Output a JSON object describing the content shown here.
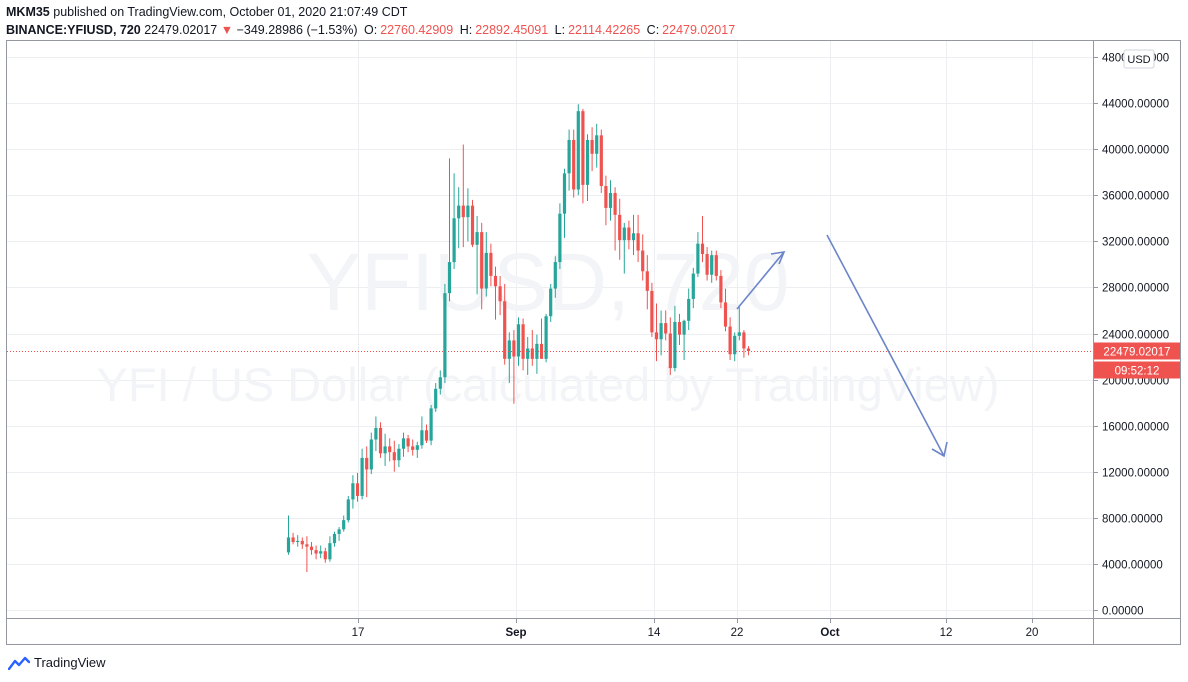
{
  "header": {
    "publisher": "MKM35",
    "published_text": "published on TradingView.com, October 01, 2020 21:07:49 CDT",
    "symbol": "BINANCE:YFIUSD, 720",
    "last": "22479.02017",
    "change": "−349.28986 (−1.53%)",
    "o_label": "O:",
    "o_value": "22760.42909",
    "h_label": "H:",
    "h_value": "22892.45091",
    "l_label": "L:",
    "l_value": "22114.42265",
    "c_label": "C:",
    "c_value": "22479.02017"
  },
  "watermark": {
    "symbol": "YFIUSD, 720",
    "description": "YFI / US Dollar (calculated by TradingView)"
  },
  "price_axis": {
    "currency_button": "USD",
    "ticks": [
      "0.00000",
      "4000.00000",
      "8000.00000",
      "12000.00000",
      "16000.00000",
      "20000.00000",
      "24000.00000",
      "28000.00000",
      "32000.00000",
      "36000.00000",
      "40000.00000",
      "44000.00000",
      "48000.00000"
    ],
    "last_price_label": "22479.02017",
    "countdown_label": "09:52:12"
  },
  "time_axis": {
    "labels": [
      "17",
      "Sep",
      "14",
      "22",
      "Oct",
      "12",
      "20"
    ]
  },
  "footer": {
    "brand": "TradingView"
  },
  "colors": {
    "up": "#26a69a",
    "down": "#ef5350",
    "arrow": "#6b85c9",
    "grid": "#eceef2"
  },
  "chart_data": {
    "type": "candlestick",
    "symbol": "BINANCE:YFIUSD",
    "interval": "720",
    "ylim": [
      0,
      48000
    ],
    "y_ticks": [
      0,
      4000,
      8000,
      12000,
      16000,
      20000,
      24000,
      28000,
      32000,
      36000,
      40000,
      44000,
      48000
    ],
    "x_tick_labels": [
      "17",
      "Sep",
      "14",
      "22",
      "Oct",
      "12",
      "20"
    ],
    "last_price": 22479.02017,
    "grid": true,
    "candles": [
      {
        "o": 5000,
        "h": 8200,
        "l": 4800,
        "c": 6300
      },
      {
        "o": 6300,
        "h": 6700,
        "l": 5700,
        "c": 5900
      },
      {
        "o": 5900,
        "h": 6500,
        "l": 5500,
        "c": 6000
      },
      {
        "o": 6000,
        "h": 6300,
        "l": 5300,
        "c": 5700
      },
      {
        "o": 5700,
        "h": 6400,
        "l": 3300,
        "c": 5500
      },
      {
        "o": 5500,
        "h": 5900,
        "l": 4800,
        "c": 5200
      },
      {
        "o": 5200,
        "h": 5600,
        "l": 4400,
        "c": 4900
      },
      {
        "o": 4900,
        "h": 5600,
        "l": 4500,
        "c": 5100
      },
      {
        "o": 5100,
        "h": 5400,
        "l": 4100,
        "c": 4400
      },
      {
        "o": 4400,
        "h": 6400,
        "l": 4200,
        "c": 5800
      },
      {
        "o": 5800,
        "h": 6800,
        "l": 5500,
        "c": 6600
      },
      {
        "o": 6600,
        "h": 7200,
        "l": 6000,
        "c": 7000
      },
      {
        "o": 7000,
        "h": 8200,
        "l": 6800,
        "c": 7800
      },
      {
        "o": 7800,
        "h": 9900,
        "l": 7600,
        "c": 9600
      },
      {
        "o": 9600,
        "h": 11700,
        "l": 8800,
        "c": 11000
      },
      {
        "o": 11000,
        "h": 11900,
        "l": 9400,
        "c": 9900
      },
      {
        "o": 9900,
        "h": 14000,
        "l": 9600,
        "c": 13200
      },
      {
        "o": 13200,
        "h": 14200,
        "l": 9800,
        "c": 12200
      },
      {
        "o": 12200,
        "h": 15400,
        "l": 11800,
        "c": 14800
      },
      {
        "o": 14800,
        "h": 16800,
        "l": 13800,
        "c": 15800
      },
      {
        "o": 15800,
        "h": 16300,
        "l": 13200,
        "c": 13600
      },
      {
        "o": 13600,
        "h": 15300,
        "l": 12500,
        "c": 14200
      },
      {
        "o": 14200,
        "h": 14900,
        "l": 12900,
        "c": 13700
      },
      {
        "o": 13700,
        "h": 14700,
        "l": 12000,
        "c": 13000
      },
      {
        "o": 13000,
        "h": 14400,
        "l": 12400,
        "c": 14000
      },
      {
        "o": 14000,
        "h": 15400,
        "l": 13300,
        "c": 14900
      },
      {
        "o": 14900,
        "h": 15200,
        "l": 13700,
        "c": 14200
      },
      {
        "o": 14200,
        "h": 14800,
        "l": 13400,
        "c": 13900
      },
      {
        "o": 13900,
        "h": 14600,
        "l": 13200,
        "c": 14300
      },
      {
        "o": 14300,
        "h": 16800,
        "l": 14000,
        "c": 15600
      },
      {
        "o": 15600,
        "h": 16100,
        "l": 14500,
        "c": 14700
      },
      {
        "o": 14700,
        "h": 17800,
        "l": 14300,
        "c": 17500
      },
      {
        "o": 17500,
        "h": 19700,
        "l": 17200,
        "c": 19200
      },
      {
        "o": 19200,
        "h": 20800,
        "l": 18700,
        "c": 20200
      },
      {
        "o": 20200,
        "h": 28300,
        "l": 19700,
        "c": 27500
      },
      {
        "o": 27500,
        "h": 39200,
        "l": 26800,
        "c": 30200
      },
      {
        "o": 30200,
        "h": 37900,
        "l": 29600,
        "c": 34000
      },
      {
        "o": 34000,
        "h": 36700,
        "l": 31400,
        "c": 35100
      },
      {
        "o": 35100,
        "h": 40400,
        "l": 31500,
        "c": 34100
      },
      {
        "o": 34100,
        "h": 36600,
        "l": 32000,
        "c": 35100
      },
      {
        "o": 35100,
        "h": 35600,
        "l": 31500,
        "c": 31700
      },
      {
        "o": 31700,
        "h": 34200,
        "l": 27400,
        "c": 32800
      },
      {
        "o": 32800,
        "h": 33600,
        "l": 26100,
        "c": 27900
      },
      {
        "o": 27900,
        "h": 32800,
        "l": 27200,
        "c": 31000
      },
      {
        "o": 31000,
        "h": 31800,
        "l": 28100,
        "c": 29000
      },
      {
        "o": 29000,
        "h": 29800,
        "l": 25200,
        "c": 28100
      },
      {
        "o": 28100,
        "h": 29000,
        "l": 25600,
        "c": 26800
      },
      {
        "o": 26800,
        "h": 28300,
        "l": 21300,
        "c": 21800
      },
      {
        "o": 21800,
        "h": 24100,
        "l": 19700,
        "c": 23400
      },
      {
        "o": 23400,
        "h": 24300,
        "l": 17900,
        "c": 22000
      },
      {
        "o": 22000,
        "h": 25400,
        "l": 21200,
        "c": 24800
      },
      {
        "o": 24800,
        "h": 25300,
        "l": 20800,
        "c": 21800
      },
      {
        "o": 21800,
        "h": 23700,
        "l": 20400,
        "c": 22700
      },
      {
        "o": 22700,
        "h": 24300,
        "l": 21200,
        "c": 21800
      },
      {
        "o": 21800,
        "h": 23900,
        "l": 20500,
        "c": 23100
      },
      {
        "o": 23100,
        "h": 25300,
        "l": 22200,
        "c": 21800
      },
      {
        "o": 21800,
        "h": 25700,
        "l": 21500,
        "c": 25500
      },
      {
        "o": 25500,
        "h": 28300,
        "l": 25000,
        "c": 27900
      },
      {
        "o": 27900,
        "h": 30700,
        "l": 27100,
        "c": 30200
      },
      {
        "o": 30200,
        "h": 35300,
        "l": 29600,
        "c": 34400
      },
      {
        "o": 34400,
        "h": 38300,
        "l": 32300,
        "c": 37900
      },
      {
        "o": 37900,
        "h": 41700,
        "l": 36400,
        "c": 40800
      },
      {
        "o": 40800,
        "h": 41700,
        "l": 35800,
        "c": 36500
      },
      {
        "o": 36500,
        "h": 43900,
        "l": 36000,
        "c": 43300
      },
      {
        "o": 43300,
        "h": 43500,
        "l": 35300,
        "c": 36900
      },
      {
        "o": 36900,
        "h": 41300,
        "l": 35500,
        "c": 40800
      },
      {
        "o": 40800,
        "h": 41900,
        "l": 38100,
        "c": 39600
      },
      {
        "o": 39600,
        "h": 42200,
        "l": 38400,
        "c": 41200
      },
      {
        "o": 41200,
        "h": 41700,
        "l": 36200,
        "c": 36800
      },
      {
        "o": 36800,
        "h": 37700,
        "l": 33400,
        "c": 34900
      },
      {
        "o": 34900,
        "h": 37300,
        "l": 33800,
        "c": 36200
      },
      {
        "o": 36200,
        "h": 36700,
        "l": 31200,
        "c": 34300
      },
      {
        "o": 34300,
        "h": 35700,
        "l": 30400,
        "c": 32100
      },
      {
        "o": 32100,
        "h": 33600,
        "l": 29200,
        "c": 33200
      },
      {
        "o": 33200,
        "h": 33800,
        "l": 31300,
        "c": 32100
      },
      {
        "o": 32100,
        "h": 34300,
        "l": 30800,
        "c": 32700
      },
      {
        "o": 32700,
        "h": 34300,
        "l": 30200,
        "c": 31200
      },
      {
        "o": 31200,
        "h": 32600,
        "l": 28600,
        "c": 29400
      },
      {
        "o": 29400,
        "h": 30800,
        "l": 26100,
        "c": 27700
      },
      {
        "o": 27700,
        "h": 28400,
        "l": 23700,
        "c": 24100
      },
      {
        "o": 24100,
        "h": 26600,
        "l": 21600,
        "c": 23500
      },
      {
        "o": 23500,
        "h": 26000,
        "l": 22100,
        "c": 24900
      },
      {
        "o": 24900,
        "h": 26000,
        "l": 23400,
        "c": 24000
      },
      {
        "o": 24000,
        "h": 25400,
        "l": 20400,
        "c": 21000
      },
      {
        "o": 21000,
        "h": 26400,
        "l": 20700,
        "c": 25000
      },
      {
        "o": 25000,
        "h": 25700,
        "l": 23000,
        "c": 23900
      },
      {
        "o": 23900,
        "h": 25200,
        "l": 21700,
        "c": 25100
      },
      {
        "o": 25100,
        "h": 27900,
        "l": 24300,
        "c": 27000
      },
      {
        "o": 27000,
        "h": 29700,
        "l": 26200,
        "c": 29200
      },
      {
        "o": 29200,
        "h": 32800,
        "l": 28900,
        "c": 31800
      },
      {
        "o": 31800,
        "h": 34200,
        "l": 30200,
        "c": 30900
      },
      {
        "o": 30900,
        "h": 31500,
        "l": 28600,
        "c": 29100
      },
      {
        "o": 29100,
        "h": 31200,
        "l": 28400,
        "c": 30800
      },
      {
        "o": 30800,
        "h": 31200,
        "l": 28600,
        "c": 29000
      },
      {
        "o": 29000,
        "h": 29500,
        "l": 26200,
        "c": 26700
      },
      {
        "o": 26700,
        "h": 27900,
        "l": 24200,
        "c": 24600
      },
      {
        "o": 24600,
        "h": 25400,
        "l": 21700,
        "c": 22200
      },
      {
        "o": 22200,
        "h": 24100,
        "l": 21600,
        "c": 23800
      },
      {
        "o": 23800,
        "h": 26300,
        "l": 23400,
        "c": 24100
      },
      {
        "o": 24100,
        "h": 24300,
        "l": 21900,
        "c": 22700
      },
      {
        "o": 22700,
        "h": 22900,
        "l": 22100,
        "c": 22479
      }
    ],
    "drawings": [
      {
        "type": "arrow",
        "direction": "up",
        "color": "#6b85c9"
      },
      {
        "type": "arrow",
        "direction": "down",
        "color": "#6b85c9"
      }
    ]
  }
}
